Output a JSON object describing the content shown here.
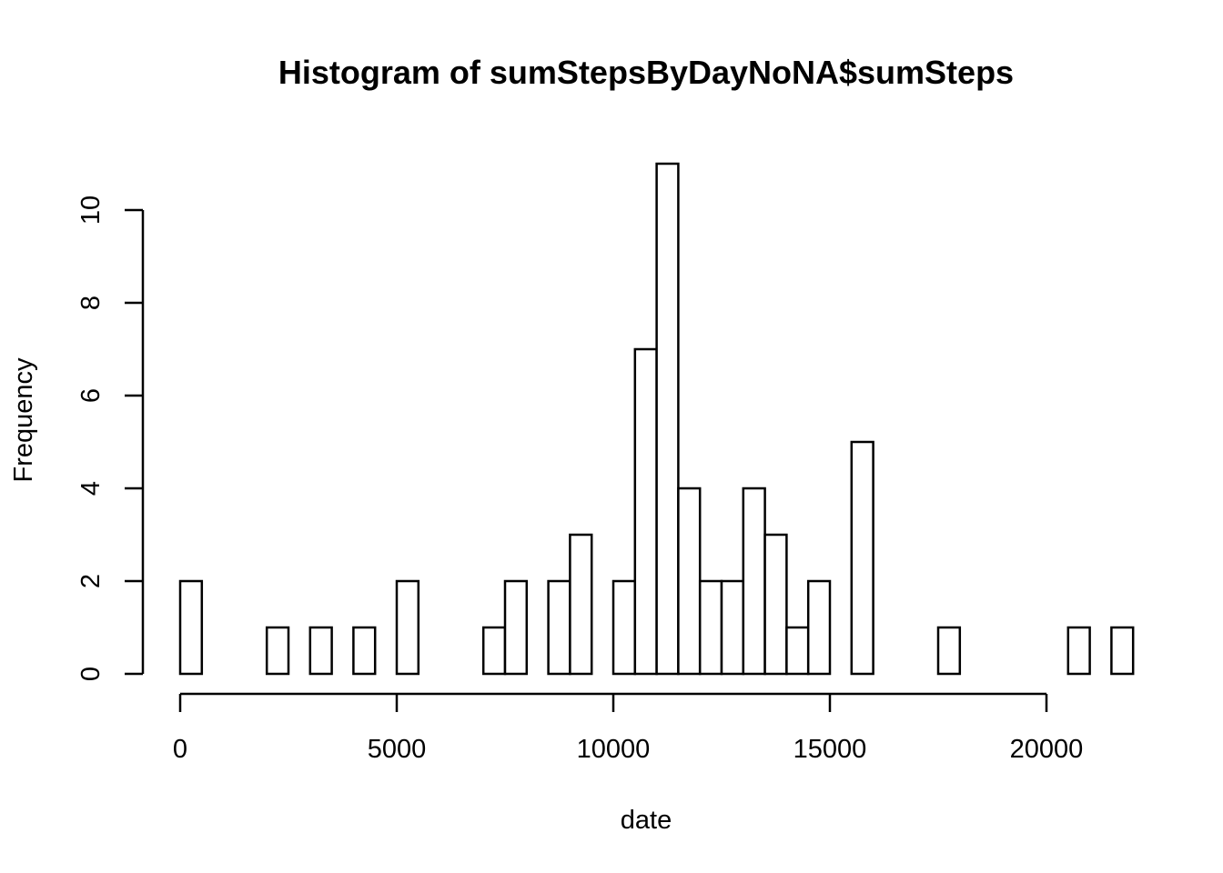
{
  "chart_data": {
    "type": "bar",
    "title": "Histogram of sumStepsByDayNoNA$sumSteps",
    "xlabel": "date",
    "ylabel": "Frequency",
    "bin_width": 500,
    "bins_start": 0,
    "values": [
      2,
      0,
      0,
      0,
      1,
      0,
      1,
      0,
      1,
      0,
      2,
      0,
      0,
      0,
      1,
      2,
      0,
      2,
      3,
      0,
      2,
      7,
      11,
      4,
      2,
      2,
      4,
      3,
      1,
      2,
      0,
      5,
      0,
      0,
      0,
      1,
      0,
      0,
      0,
      0,
      0,
      1,
      0,
      1
    ],
    "xlim": [
      0,
      21500
    ],
    "ylim": [
      0,
      11
    ],
    "x_ticks": [
      {
        "value": 0,
        "label": "0"
      },
      {
        "value": 5000,
        "label": "5000"
      },
      {
        "value": 10000,
        "label": "10000"
      },
      {
        "value": 15000,
        "label": "15000"
      },
      {
        "value": 20000,
        "label": "20000"
      }
    ],
    "y_ticks": [
      {
        "value": 0,
        "label": "0"
      },
      {
        "value": 2,
        "label": "2"
      },
      {
        "value": 4,
        "label": "4"
      },
      {
        "value": 6,
        "label": "6"
      },
      {
        "value": 8,
        "label": "8"
      },
      {
        "value": 10,
        "label": "10"
      }
    ],
    "grid": false,
    "legend": "none"
  }
}
